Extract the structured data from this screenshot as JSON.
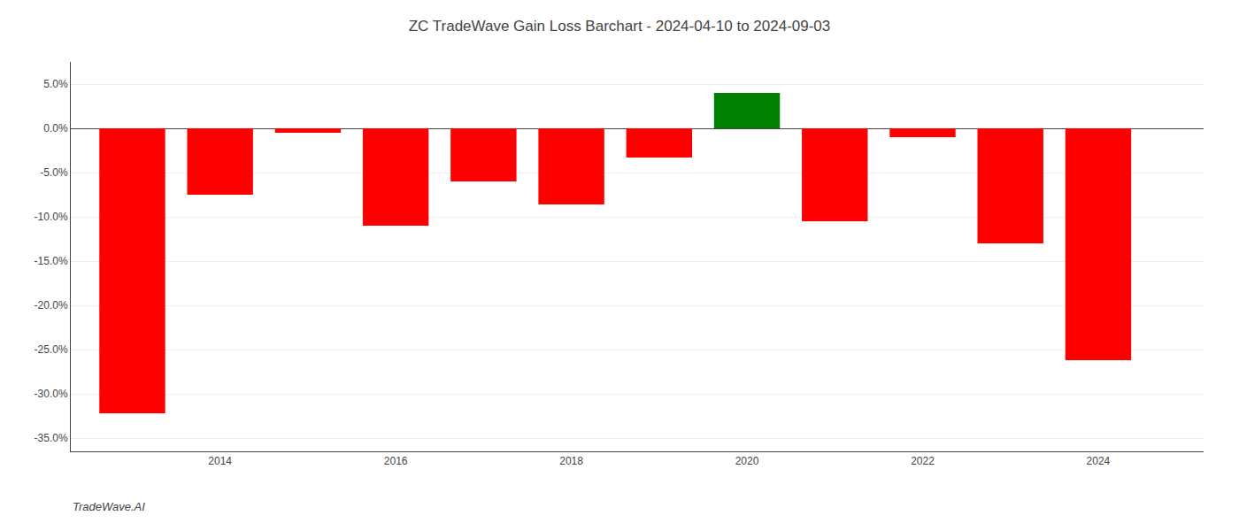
{
  "chart_data": {
    "type": "bar",
    "title": "ZC TradeWave Gain Loss Barchart - 2024-04-10 to 2024-09-03",
    "annotations": [
      {
        "text": "TradeWave.AI"
      }
    ],
    "x": [
      2013,
      2014,
      2015,
      2016,
      2017,
      2018,
      2019,
      2020,
      2021,
      2022,
      2023,
      2024
    ],
    "values": [
      -0.322,
      -0.075,
      -0.005,
      -0.11,
      -0.06,
      -0.086,
      -0.033,
      0.04,
      -0.105,
      -0.01,
      -0.13,
      -0.262
    ],
    "colors": [
      "#ff0000",
      "#ff0000",
      "#ff0000",
      "#ff0000",
      "#ff0000",
      "#ff0000",
      "#ff0000",
      "#008000",
      "#ff0000",
      "#ff0000",
      "#ff0000",
      "#ff0000"
    ],
    "xlim": [
      2012.3,
      2025.2
    ],
    "xticks": [
      2014,
      2016,
      2018,
      2020,
      2022,
      2024
    ],
    "ylim": [
      -0.365,
      0.075
    ],
    "yticks": [
      {
        "value": -0.35,
        "label": "-35.0%"
      },
      {
        "value": -0.3,
        "label": "-30.0%"
      },
      {
        "value": -0.25,
        "label": "-25.0%"
      },
      {
        "value": -0.2,
        "label": "-20.0%"
      },
      {
        "value": -0.15,
        "label": "-15.0%"
      },
      {
        "value": -0.1,
        "label": "-10.0%"
      },
      {
        "value": -0.05,
        "label": "-5.0%"
      },
      {
        "value": 0,
        "label": "0.0%"
      },
      {
        "value": 0.05,
        "label": "5.0%"
      }
    ],
    "grid": true
  }
}
